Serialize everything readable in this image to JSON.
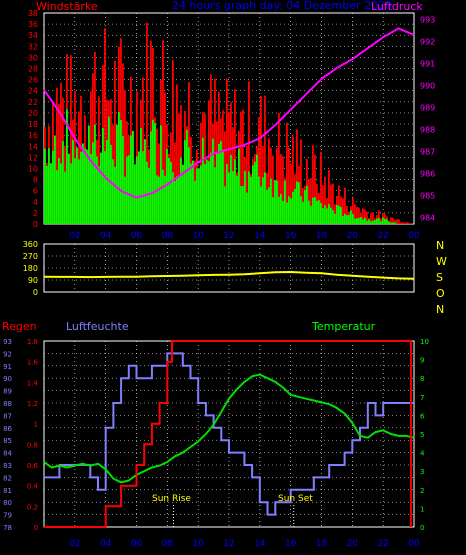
{
  "header": {
    "left_label": "Windstärke",
    "title": "24 hours graph day: 04 Dezember 2020",
    "right_label": "Luftdruck"
  },
  "direction_labels": [
    "N",
    "W",
    "S",
    "O",
    "N"
  ],
  "sunrise_label": "Sun Rise",
  "sunset_label": "Sun Set",
  "bottom_labels": {
    "rain": "Regen",
    "humidity": "Luftfeuchte",
    "temperature": "Temperatur"
  },
  "colors": {
    "wind_gust": "#ff0000",
    "wind_avg": "#00ff00",
    "pressure": "#ff00ff",
    "direction": "#ffff00",
    "rain": "#ff0000",
    "humidity": "#8080ff",
    "temperature": "#00e000",
    "left_axis": "#ff0000",
    "right_axis_pressure": "#ff00ff",
    "direction_axis": "#ffff00",
    "humidity_axis": "#8080ff",
    "temperature_axis": "#00ff00",
    "time_axis": "#0000ff"
  },
  "chart_data": [
    {
      "type": "bar",
      "name": "wind",
      "x_ticks": [
        "02",
        "04",
        "06",
        "08",
        "10",
        "12",
        "14",
        "16",
        "18",
        "20",
        "22",
        "00"
      ],
      "xlim": [
        0,
        24
      ],
      "left_axis": {
        "label": "Windstärke",
        "ticks": [
          "0",
          "2",
          "4",
          "6",
          "8",
          "10",
          "12",
          "14",
          "16",
          "18",
          "20",
          "22",
          "24",
          "26",
          "28",
          "30",
          "32",
          "34",
          "36",
          "38"
        ],
        "ylim": [
          0,
          38
        ]
      },
      "right_axis": {
        "label": "Luftdruck",
        "ticks": [
          "984",
          "985",
          "986",
          "987",
          "988",
          "989",
          "990",
          "991",
          "992",
          "993"
        ],
        "ylim": [
          983.7,
          993.3
        ]
      },
      "series": [
        {
          "name": "gust",
          "x": [
            0,
            1,
            2,
            3,
            4,
            5,
            6,
            7,
            8,
            9,
            10,
            11,
            12,
            13,
            14,
            15,
            16,
            17,
            18,
            19,
            20,
            21,
            22,
            23,
            24
          ],
          "values": [
            24,
            30,
            28,
            34,
            33,
            32,
            30,
            38,
            32,
            30,
            27,
            26,
            24,
            24,
            24,
            20,
            18,
            15,
            12,
            8,
            5,
            3,
            2,
            1,
            0
          ]
        },
        {
          "name": "average",
          "x": [
            0,
            1,
            2,
            3,
            4,
            5,
            6,
            7,
            8,
            9,
            10,
            11,
            12,
            13,
            14,
            15,
            16,
            17,
            18,
            19,
            20,
            21,
            22,
            23,
            24
          ],
          "values": [
            15,
            18,
            17,
            19,
            18,
            17,
            15,
            17,
            16,
            15,
            14,
            13,
            12,
            11,
            11,
            9,
            7,
            6,
            4,
            3,
            2,
            1,
            1,
            0,
            0
          ]
        },
        {
          "name": "pressure",
          "x": [
            0,
            1,
            2,
            3,
            4,
            5,
            6,
            7,
            8,
            9,
            10,
            11,
            12,
            13,
            14,
            15,
            16,
            17,
            18,
            19,
            20,
            21,
            22,
            23,
            24
          ],
          "values": [
            989.8,
            988.8,
            987.6,
            986.6,
            985.8,
            985.2,
            984.9,
            985.1,
            985.5,
            986.0,
            986.5,
            986.9,
            987.1,
            987.3,
            987.6,
            988.2,
            988.9,
            989.6,
            990.3,
            990.8,
            991.2,
            991.7,
            992.2,
            992.6,
            992.3
          ]
        }
      ]
    },
    {
      "type": "line",
      "name": "wind_direction",
      "x_ticks": [
        "02",
        "04",
        "06",
        "08",
        "10",
        "12",
        "14",
        "16",
        "18",
        "20",
        "22",
        "00"
      ],
      "xlim": [
        0,
        24
      ],
      "y_ticks": [
        "0",
        "90",
        "180",
        "270",
        "360"
      ],
      "ylim": [
        0,
        360
      ],
      "series": [
        {
          "name": "direction",
          "x": [
            0,
            1,
            2,
            3,
            4,
            5,
            6,
            7,
            8,
            9,
            10,
            11,
            12,
            13,
            14,
            15,
            16,
            17,
            18,
            19,
            20,
            21,
            22,
            23,
            24
          ],
          "values": [
            115,
            113,
            113,
            112,
            113,
            114,
            115,
            118,
            120,
            122,
            125,
            128,
            130,
            133,
            140,
            148,
            150,
            145,
            140,
            130,
            122,
            115,
            108,
            102,
            100
          ]
        }
      ]
    },
    {
      "type": "line",
      "name": "rain_humidity_temperature",
      "x_ticks": [
        "02",
        "04",
        "06",
        "08",
        "10",
        "12",
        "14",
        "16",
        "18",
        "20",
        "22",
        "00"
      ],
      "xlim": [
        0,
        24
      ],
      "rain_axis": {
        "label": "Regen",
        "ticks": [
          "0",
          "0.2",
          "0.4",
          "0.6",
          "0.8",
          "1",
          "1.2",
          "1.4",
          "1.6",
          "1.8"
        ],
        "ylim": [
          0,
          1.8
        ]
      },
      "humidity_axis": {
        "label": "Luftfeuchte",
        "ticks": [
          "78",
          "79",
          "80",
          "81",
          "82",
          "83",
          "84",
          "85",
          "86",
          "87",
          "88",
          "89",
          "90",
          "91",
          "92",
          "93"
        ],
        "ylim": [
          78,
          93
        ]
      },
      "temperature_axis": {
        "label": "Temperatur",
        "ticks": [
          "0",
          "1",
          "2",
          "3",
          "4",
          "5",
          "6",
          "7",
          "8",
          "9",
          "10"
        ],
        "ylim": [
          0,
          10
        ]
      },
      "series": [
        {
          "name": "rain",
          "x": [
            0,
            4,
            4,
            5,
            5,
            6,
            6,
            6.5,
            6.5,
            7,
            7,
            7.5,
            7.5,
            8,
            8,
            8.3,
            8.3,
            23.8,
            23.8
          ],
          "values": [
            0,
            0,
            0.2,
            0.2,
            0.4,
            0.4,
            0.6,
            0.6,
            0.8,
            0.8,
            1.0,
            1.0,
            1.2,
            1.2,
            1.6,
            1.6,
            1.8,
            1.8,
            0
          ]
        },
        {
          "name": "humidity",
          "x": [
            0,
            0.5,
            1,
            1.5,
            2,
            2.5,
            3,
            3.5,
            4,
            4.5,
            5,
            5.5,
            6,
            6.5,
            7,
            7.5,
            8,
            8.5,
            9,
            9.5,
            10,
            10.5,
            11,
            11.5,
            12,
            12.5,
            13,
            13.5,
            14,
            14.5,
            15,
            15.5,
            16,
            16.5,
            17,
            17.5,
            18,
            18.5,
            19,
            19.5,
            20,
            20.5,
            21,
            21.5,
            22,
            22.5,
            23,
            23.5,
            24
          ],
          "values": [
            82,
            82,
            83,
            83,
            83,
            83,
            82,
            81,
            86,
            88,
            90,
            91,
            90,
            90,
            91,
            91,
            92,
            92,
            91,
            90,
            88,
            87,
            86,
            85,
            84,
            84,
            83,
            82,
            80,
            79,
            80,
            80,
            81,
            81,
            81,
            82,
            82,
            83,
            83,
            84,
            85,
            86,
            88,
            87,
            88,
            88,
            88,
            88,
            88
          ]
        },
        {
          "name": "temperature",
          "x": [
            0,
            0.5,
            1,
            1.5,
            2,
            2.5,
            3,
            3.5,
            4,
            4.5,
            5,
            5.5,
            6,
            6.5,
            7,
            7.5,
            8,
            8.5,
            9,
            9.5,
            10,
            10.5,
            11,
            11.5,
            12,
            12.5,
            13,
            13.5,
            14,
            14.5,
            15,
            15.5,
            16,
            16.5,
            17,
            17.5,
            18,
            18.5,
            19,
            19.5,
            20,
            20.5,
            21,
            21.5,
            22,
            22.5,
            23,
            23.5,
            24
          ],
          "values": [
            3.5,
            3.2,
            3.3,
            3.2,
            3.3,
            3.4,
            3.3,
            3.4,
            3.1,
            2.6,
            2.4,
            2.5,
            2.8,
            3.0,
            3.2,
            3.3,
            3.5,
            3.8,
            4.0,
            4.3,
            4.6,
            5.0,
            5.5,
            6.2,
            6.9,
            7.4,
            7.8,
            8.1,
            8.2,
            8.0,
            7.8,
            7.5,
            7.1,
            7.0,
            6.9,
            6.8,
            6.7,
            6.6,
            6.4,
            6.1,
            5.6,
            4.9,
            4.8,
            5.1,
            5.2,
            5.0,
            4.9,
            4.9,
            4.8
          ]
        }
      ]
    }
  ]
}
